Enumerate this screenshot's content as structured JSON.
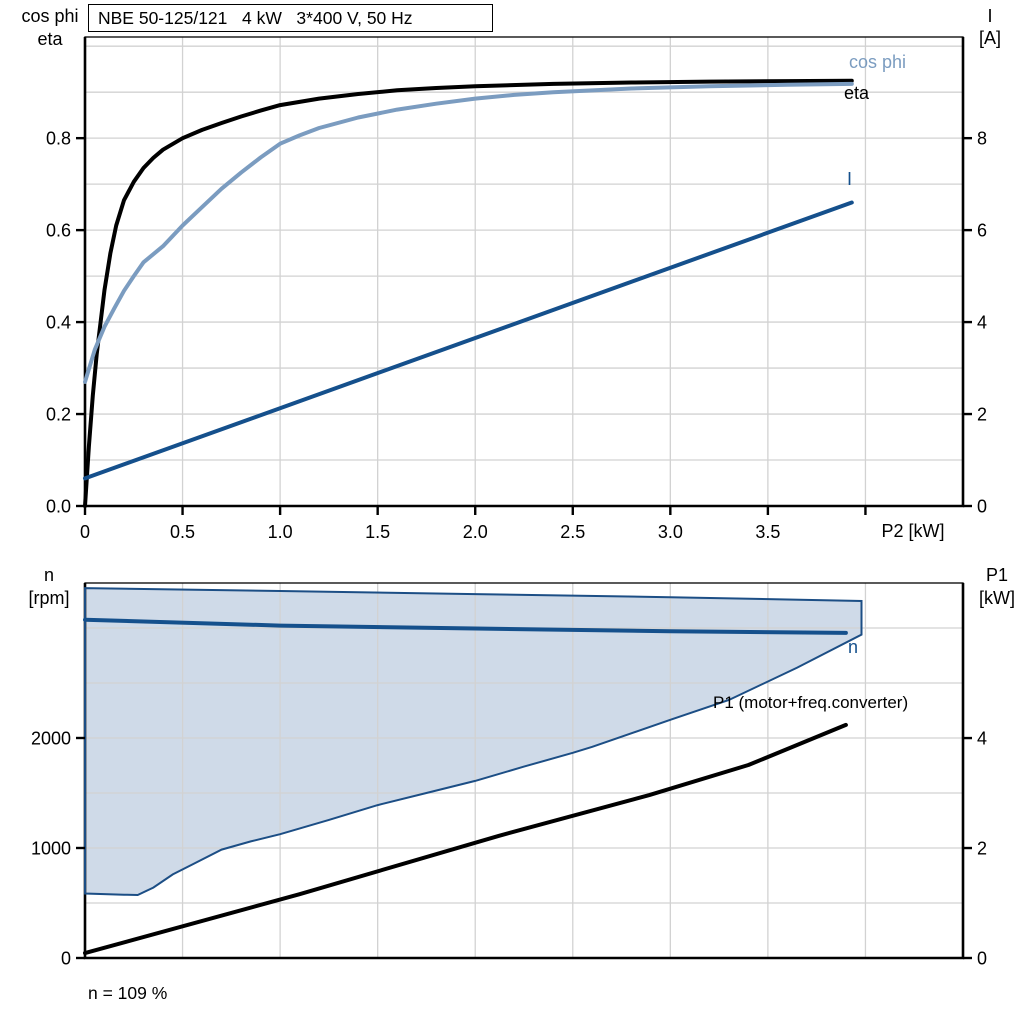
{
  "title_box": {
    "text": "NBE 50-125/121   4 kW   3*400 V, 50 Hz"
  },
  "colors": {
    "eta": "#000000",
    "cos_phi": "#7b9cc0",
    "current": "#15508c",
    "speed": "#15508c",
    "p1": "#000000",
    "band_fill": "#cfdae8",
    "band_stroke": "#1c4e85",
    "grid": "#d2d2d2",
    "axis": "#000000"
  },
  "labels": {
    "top_left_line1": "cos phi",
    "top_left_line2": "eta",
    "top_right_line1": "I",
    "top_right_line2": "[A]",
    "bottom_left_line1": "n",
    "bottom_left_line2": "[rpm]",
    "bottom_right_line1": "P1",
    "bottom_right_line2": "[kW]",
    "x_axis_title": "P2 [kW]",
    "cos_phi_curve": "cos phi",
    "eta_curve": "eta",
    "current_curve": "I",
    "speed_curve": "n",
    "p1_curve": "P1 (motor+freq.converter)",
    "annotation": "n = 109 %"
  },
  "chart_data": [
    {
      "type": "line",
      "title": "NBE 50-125/121   4 kW   3*400 V, 50 Hz",
      "xlabel": "P2 [kW]",
      "x_range": [
        0,
        4.5
      ],
      "x_gridlines": [
        0.5,
        1.0,
        1.5,
        2.0,
        2.5,
        3.0,
        3.5,
        4.0
      ],
      "x_ticks": {
        "values": [
          0,
          0.5,
          1.0,
          1.5,
          2.0,
          2.5,
          3.0,
          3.5,
          4.0
        ],
        "labels": [
          "0",
          "0.5",
          "1.0",
          "1.5",
          "2.0",
          "2.5",
          "3.0",
          "3.5",
          ""
        ]
      },
      "left_axis": {
        "label": "cos phi / eta",
        "range": [
          0,
          1.02
        ],
        "gridline_values": [
          0.1,
          0.2,
          0.3,
          0.4,
          0.5,
          0.6,
          0.7,
          0.8,
          0.9,
          1.0
        ],
        "tick_values": [
          0,
          0.2,
          0.4,
          0.6,
          0.8
        ],
        "tick_labels": [
          "0.0",
          "0.2",
          "0.4",
          "0.6",
          "0.8"
        ]
      },
      "right_axis": {
        "label": "I [A]",
        "range": [
          0,
          10.2
        ],
        "tick_values": [
          0,
          2,
          4,
          6,
          8
        ],
        "tick_labels": [
          "0",
          "2",
          "4",
          "6",
          "8"
        ]
      },
      "series": [
        {
          "name": "eta",
          "axis": "left",
          "color": "#000000",
          "width": 4,
          "points": [
            [
              0,
              0
            ],
            [
              0.02,
              0.13
            ],
            [
              0.04,
              0.24
            ],
            [
              0.06,
              0.33
            ],
            [
              0.08,
              0.4
            ],
            [
              0.1,
              0.47
            ],
            [
              0.13,
              0.55
            ],
            [
              0.16,
              0.61
            ],
            [
              0.2,
              0.665
            ],
            [
              0.25,
              0.705
            ],
            [
              0.3,
              0.735
            ],
            [
              0.35,
              0.757
            ],
            [
              0.4,
              0.775
            ],
            [
              0.5,
              0.8
            ],
            [
              0.6,
              0.818
            ],
            [
              0.7,
              0.833
            ],
            [
              0.8,
              0.847
            ],
            [
              0.9,
              0.86
            ],
            [
              1.0,
              0.872
            ],
            [
              1.2,
              0.886
            ],
            [
              1.4,
              0.896
            ],
            [
              1.6,
              0.904
            ],
            [
              1.8,
              0.909
            ],
            [
              2.0,
              0.913
            ],
            [
              2.4,
              0.918
            ],
            [
              2.8,
              0.921
            ],
            [
              3.2,
              0.923
            ],
            [
              3.6,
              0.924
            ],
            [
              3.93,
              0.925
            ]
          ]
        },
        {
          "name": "cos phi",
          "axis": "left",
          "color": "#7b9cc0",
          "width": 4,
          "points": [
            [
              0,
              0.27
            ],
            [
              0.05,
              0.34
            ],
            [
              0.1,
              0.39
            ],
            [
              0.15,
              0.43
            ],
            [
              0.2,
              0.468
            ],
            [
              0.25,
              0.5
            ],
            [
              0.3,
              0.53
            ],
            [
              0.4,
              0.565
            ],
            [
              0.5,
              0.61
            ],
            [
              0.6,
              0.65
            ],
            [
              0.7,
              0.69
            ],
            [
              0.8,
              0.725
            ],
            [
              0.9,
              0.758
            ],
            [
              1.0,
              0.788
            ],
            [
              1.1,
              0.806
            ],
            [
              1.2,
              0.822
            ],
            [
              1.4,
              0.845
            ],
            [
              1.6,
              0.862
            ],
            [
              1.8,
              0.875
            ],
            [
              2.0,
              0.886
            ],
            [
              2.2,
              0.894
            ],
            [
              2.4,
              0.9
            ],
            [
              2.8,
              0.908
            ],
            [
              3.2,
              0.913
            ],
            [
              3.6,
              0.916
            ],
            [
              3.93,
              0.918
            ]
          ]
        },
        {
          "name": "I",
          "axis": "right",
          "color": "#15508c",
          "width": 4,
          "points": [
            [
              0,
              0.6
            ],
            [
              3.93,
              6.6
            ]
          ]
        }
      ]
    },
    {
      "type": "line",
      "title": "speed range and input power",
      "xlabel": "",
      "x_range": [
        0,
        4.5
      ],
      "x_gridlines": [
        0.5,
        1.0,
        1.5,
        2.0,
        2.5,
        3.0,
        3.5,
        4.0
      ],
      "x_ticks": {
        "values": [],
        "labels": []
      },
      "left_axis": {
        "label": "n [rpm]",
        "range": [
          0,
          3409
        ],
        "gridline_values": [
          500,
          1000,
          1500,
          2000,
          2500,
          3000
        ],
        "tick_values": [
          0,
          1000,
          2000
        ],
        "tick_labels": [
          "0",
          "1000",
          "2000"
        ]
      },
      "right_axis": {
        "label": "P1 [kW]",
        "range": [
          0,
          6.82
        ],
        "tick_values": [
          0,
          2,
          4
        ],
        "tick_labels": [
          "0",
          "2",
          "4"
        ]
      },
      "band": {
        "name": "speed-range n = 109 %",
        "fill": "#cfdae8",
        "stroke": "#1c4e85",
        "stroke_width": 2,
        "upper": [
          [
            0,
            3363
          ],
          [
            1.0,
            3336
          ],
          [
            2.0,
            3308
          ],
          [
            3.0,
            3280
          ],
          [
            3.98,
            3245
          ]
        ],
        "lower": [
          [
            0,
            586
          ],
          [
            0.2,
            575
          ],
          [
            0.27,
            573
          ],
          [
            0.35,
            640
          ],
          [
            0.45,
            760
          ],
          [
            0.55,
            850
          ],
          [
            0.7,
            985
          ],
          [
            0.85,
            1060
          ],
          [
            1.0,
            1125
          ],
          [
            1.25,
            1255
          ],
          [
            1.5,
            1390
          ],
          [
            1.75,
            1500
          ],
          [
            2.0,
            1610
          ],
          [
            2.25,
            1740
          ],
          [
            2.5,
            1865
          ],
          [
            2.6,
            1920
          ],
          [
            3.0,
            2165
          ],
          [
            3.3,
            2345
          ],
          [
            3.65,
            2640
          ],
          [
            3.98,
            2940
          ]
        ]
      },
      "series": [
        {
          "name": "n",
          "axis": "left",
          "color": "#15508c",
          "width": 4,
          "points": [
            [
              0,
              3075
            ],
            [
              1.0,
              3022
            ],
            [
              2.0,
              2995
            ],
            [
              3.0,
              2970
            ],
            [
              3.9,
              2955
            ]
          ]
        },
        {
          "name": "P1 (motor+freq.converter)",
          "axis": "right",
          "color": "#000000",
          "width": 4,
          "points": [
            [
              0,
              0.09
            ],
            [
              1.1,
              1.16
            ],
            [
              2.12,
              2.22
            ],
            [
              2.89,
              2.96
            ],
            [
              3.4,
              3.51
            ],
            [
              3.9,
              4.24
            ]
          ]
        }
      ]
    }
  ]
}
